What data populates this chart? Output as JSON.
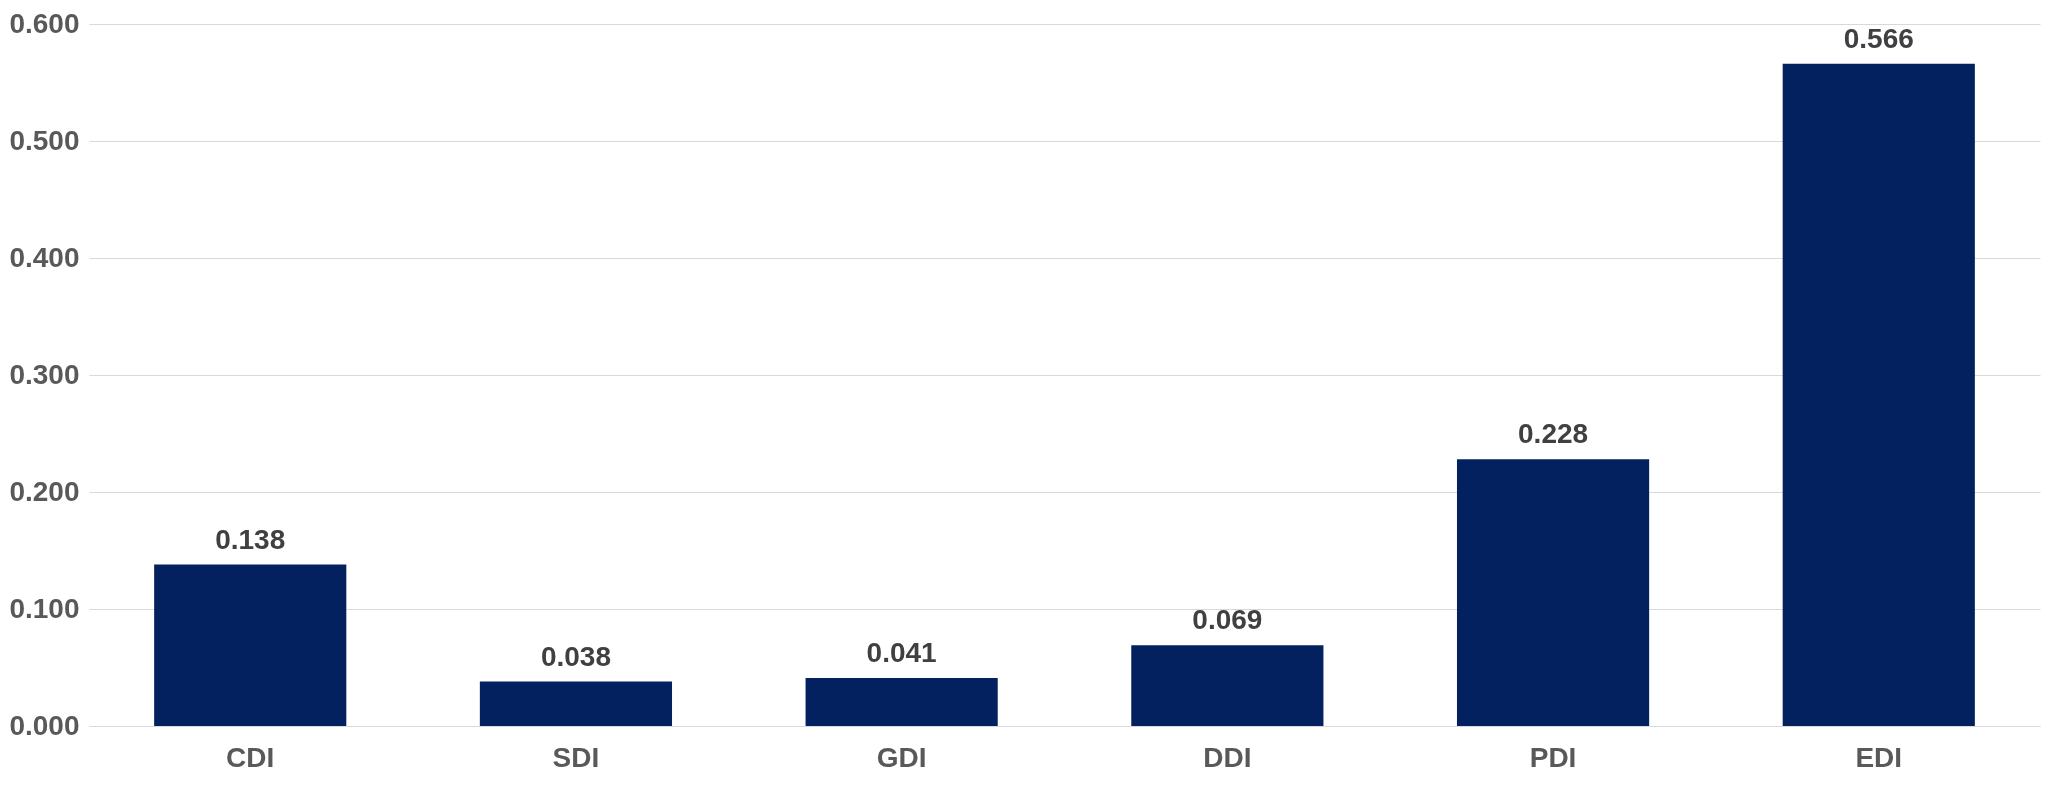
{
  "chart_data": {
    "type": "bar",
    "categories": [
      "CDI",
      "SDI",
      "GDI",
      "DDI",
      "PDI",
      "EDI"
    ],
    "values": [
      0.138,
      0.038,
      0.041,
      0.069,
      0.228,
      0.566
    ],
    "color": "#03215e",
    "ylim": [
      0,
      0.6
    ],
    "yticks": [
      {
        "value": 0,
        "label": "0.000"
      },
      {
        "value": 0.1,
        "label": "0.100"
      },
      {
        "value": 0.2,
        "label": "0.200"
      },
      {
        "value": 0.3,
        "label": "0.300"
      },
      {
        "value": 0.4,
        "label": "0.400"
      },
      {
        "value": 0.5,
        "label": "0.500"
      },
      {
        "value": 0.6,
        "label": "0.600"
      }
    ],
    "grid": "y",
    "data_labels": true
  }
}
